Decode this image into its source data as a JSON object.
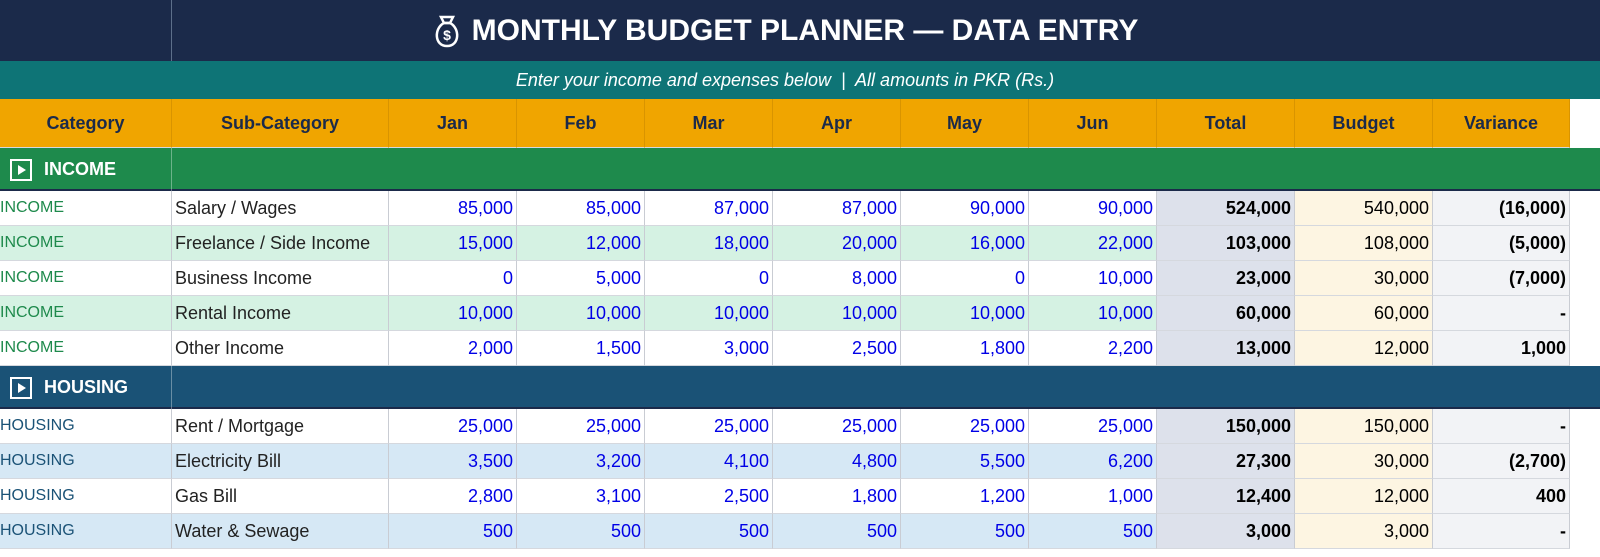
{
  "header": {
    "title": "MONTHLY BUDGET PLANNER — DATA ENTRY",
    "subtitle": "Enter your income and expenses below  |  All amounts in PKR (Rs.)"
  },
  "table": {
    "columns": [
      "Category",
      "Sub-Category",
      "Jan",
      "Feb",
      "Mar",
      "Apr",
      "May",
      "Jun",
      "Total",
      "Budget",
      "Variance"
    ],
    "sections": [
      {
        "name": "INCOME",
        "rows": [
          [
            "INCOME",
            "Salary / Wages",
            "85,000",
            "85,000",
            "87,000",
            "87,000",
            "90,000",
            "90,000",
            "524,000",
            "540,000",
            "(16,000)"
          ],
          [
            "INCOME",
            "Freelance / Side Income",
            "15,000",
            "12,000",
            "18,000",
            "20,000",
            "16,000",
            "22,000",
            "103,000",
            "108,000",
            "(5,000)"
          ],
          [
            "INCOME",
            "Business Income",
            "0",
            "5,000",
            "0",
            "8,000",
            "0",
            "10,000",
            "23,000",
            "30,000",
            "(7,000)"
          ],
          [
            "INCOME",
            "Rental Income",
            "10,000",
            "10,000",
            "10,000",
            "10,000",
            "10,000",
            "10,000",
            "60,000",
            "60,000",
            "-"
          ],
          [
            "INCOME",
            "Other Income",
            "2,000",
            "1,500",
            "3,000",
            "2,500",
            "1,800",
            "2,200",
            "13,000",
            "12,000",
            "1,000"
          ]
        ]
      },
      {
        "name": "HOUSING",
        "rows": [
          [
            "HOUSING",
            "Rent / Mortgage",
            "25,000",
            "25,000",
            "25,000",
            "25,000",
            "25,000",
            "25,000",
            "150,000",
            "150,000",
            "-"
          ],
          [
            "HOUSING",
            "Electricity Bill",
            "3,500",
            "3,200",
            "4,100",
            "4,800",
            "5,500",
            "6,200",
            "27,300",
            "30,000",
            "(2,700)"
          ],
          [
            "HOUSING",
            "Gas Bill",
            "2,800",
            "3,100",
            "2,500",
            "1,800",
            "1,200",
            "1,000",
            "12,400",
            "12,000",
            "400"
          ],
          [
            "HOUSING",
            "Water & Sewage",
            "500",
            "500",
            "500",
            "500",
            "500",
            "500",
            "3,000",
            "3,000",
            "-"
          ]
        ]
      }
    ]
  }
}
